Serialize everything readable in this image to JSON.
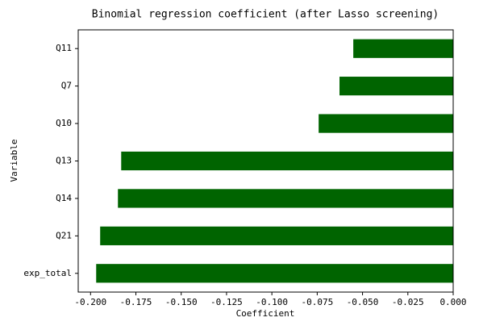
{
  "chart_data": {
    "type": "barh",
    "title": "Binomial regression coefficient (after Lasso screening)",
    "xlabel": "Coefficient",
    "ylabel": "Variable",
    "categories": [
      "Q11",
      "Q7",
      "Q10",
      "Q13",
      "Q14",
      "Q21",
      "exp_total"
    ],
    "values": [
      -0.0551,
      -0.0627,
      -0.0742,
      -0.1831,
      -0.1849,
      -0.1947,
      -0.1969
    ],
    "color": "#006400",
    "xlim": [
      -0.2068,
      0
    ],
    "xticks": [
      {
        "value": -0.2,
        "label": "-0.200"
      },
      {
        "value": -0.175,
        "label": "-0.175"
      },
      {
        "value": -0.15,
        "label": "-0.150"
      },
      {
        "value": -0.125,
        "label": "-0.125"
      },
      {
        "value": -0.1,
        "label": "-0.100"
      },
      {
        "value": -0.075,
        "label": "-0.075"
      },
      {
        "value": -0.05,
        "label": "-0.050"
      },
      {
        "value": -0.025,
        "label": "-0.025"
      },
      {
        "value": 0,
        "label": "0.000"
      }
    ],
    "grid": false
  }
}
